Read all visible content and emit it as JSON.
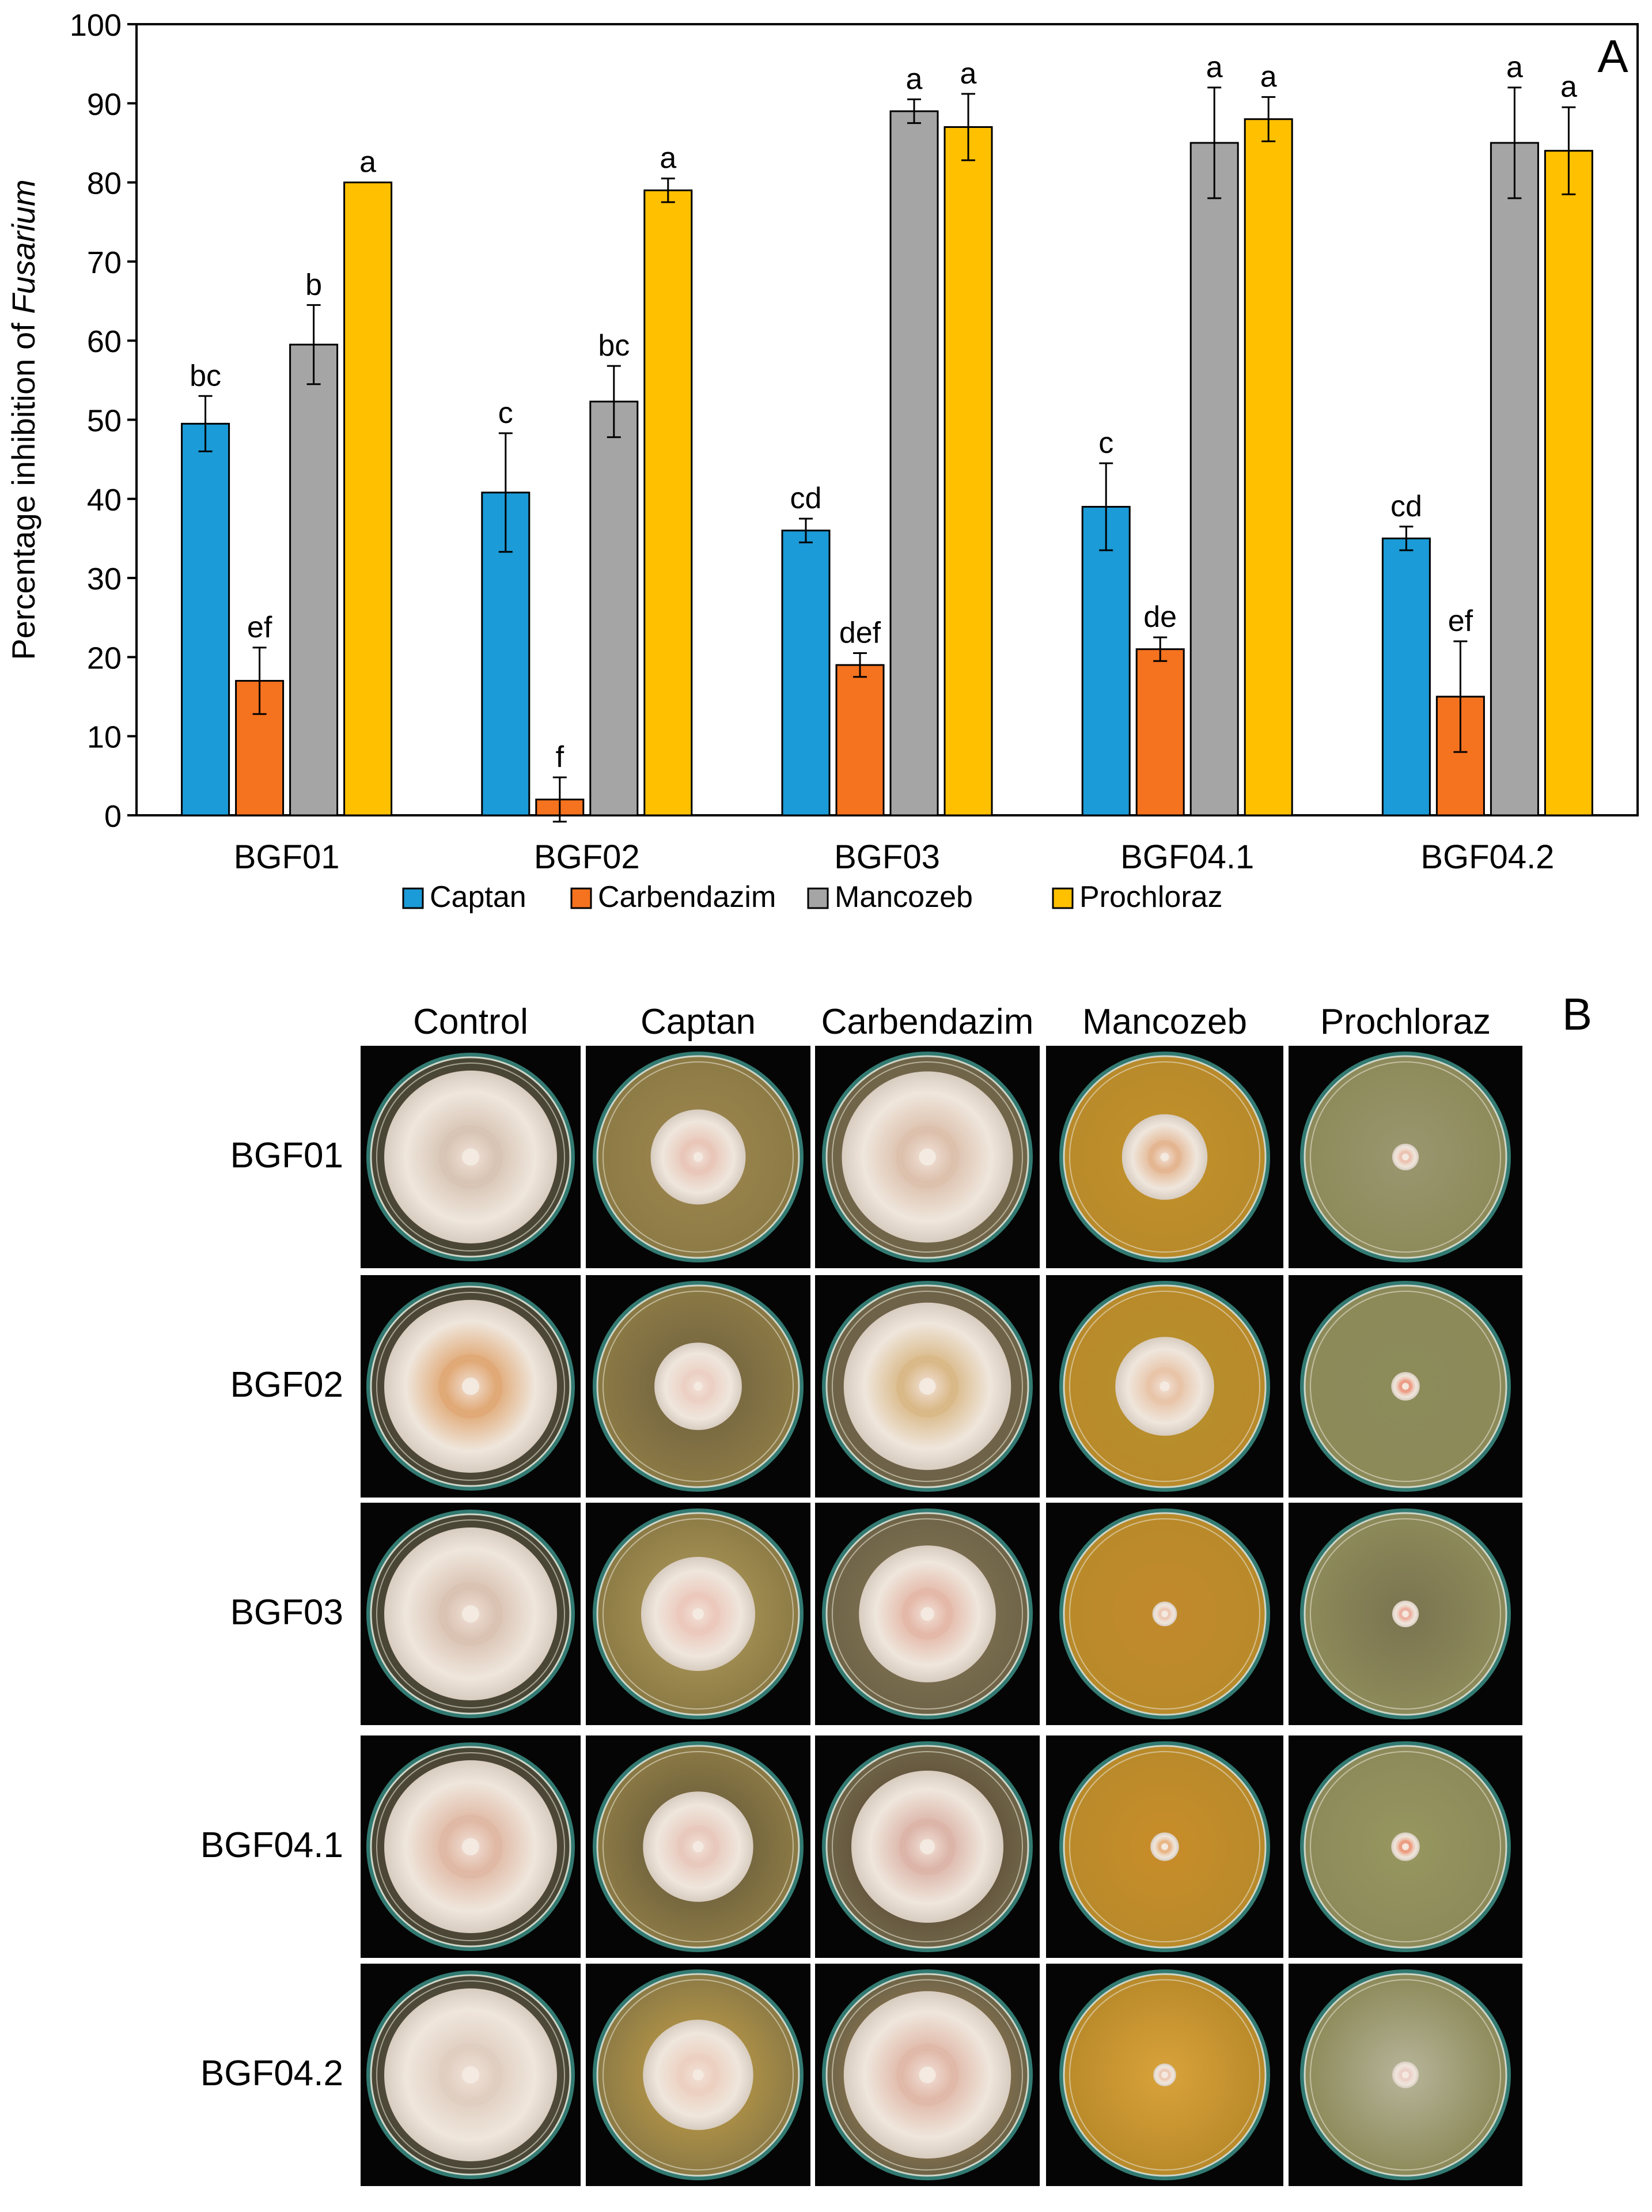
{
  "chart_data": {
    "type": "bar",
    "panel_label": "A",
    "ylabel_prefix": "Percentage inhibition of ",
    "ylabel_italic": "Fusarium",
    "xlabel": "",
    "ylim": [
      0,
      100
    ],
    "yticks": [
      "0",
      "10",
      "20",
      "30",
      "40",
      "50",
      "60",
      "70",
      "80",
      "90",
      "100"
    ],
    "categories": [
      "BGF01",
      "BGF02",
      "BGF03",
      "BGF04.1",
      "BGF04.2"
    ],
    "series": [
      {
        "name": "Captan",
        "color": "#1b9bd7",
        "values": [
          49.5,
          40.8,
          36,
          39,
          35
        ],
        "errors": [
          3.5,
          7.5,
          1.5,
          5.5,
          1.5
        ],
        "letters": [
          "bc",
          "c",
          "cd",
          "c",
          "cd"
        ]
      },
      {
        "name": "Carbendazim",
        "color": "#f5721f",
        "values": [
          17,
          2,
          19,
          21,
          15
        ],
        "errors": [
          4.2,
          2.8,
          1.5,
          1.5,
          7
        ],
        "letters": [
          "ef",
          "f",
          "def",
          "de",
          "ef"
        ]
      },
      {
        "name": "Mancozeb",
        "color": "#a5a5a5",
        "values": [
          59.5,
          52.3,
          89,
          85,
          85
        ],
        "errors": [
          5,
          4.5,
          1.5,
          7,
          7
        ],
        "letters": [
          "b",
          "bc",
          "a",
          "a",
          "a"
        ]
      },
      {
        "name": "Prochloraz",
        "color": "#ffc000",
        "values": [
          80,
          79,
          87,
          88,
          84
        ],
        "errors": [
          0,
          1.5,
          4.2,
          2.8,
          5.5
        ],
        "letters": [
          "a",
          "a",
          "a",
          "a",
          "a"
        ]
      }
    ],
    "legend_position": "bottom"
  },
  "panel_b": {
    "label": "B",
    "columns": [
      "Control",
      "Captan",
      "Carbendazim",
      "Mancozeb",
      "Prochloraz"
    ],
    "rows": [
      "BGF01",
      "BGF02",
      "BGF03",
      "BGF04.1",
      "BGF04.2"
    ]
  }
}
